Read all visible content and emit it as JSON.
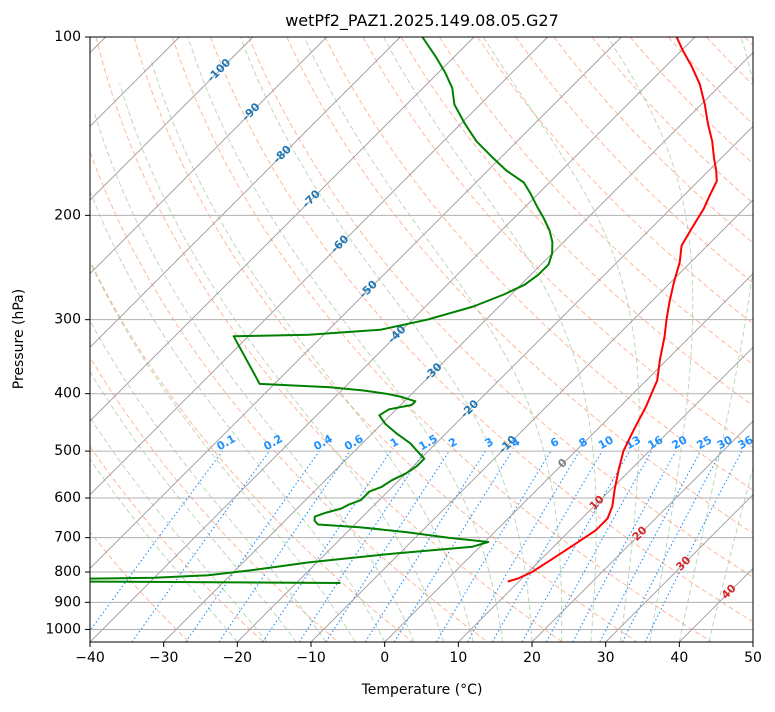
{
  "chart_data": {
    "type": "skew-t",
    "title": "wetPf2_PAZ1.2025.149.08.05.G27",
    "xlabel": "Temperature (°C)",
    "ylabel": "Pressure (hPa)",
    "xlim": [
      -40,
      50
    ],
    "ylim": [
      1050,
      100
    ],
    "y_scale": "log",
    "x_ticks": [
      -40,
      -30,
      -20,
      -10,
      0,
      10,
      20,
      30,
      40,
      50
    ],
    "x_tick_labels": [
      "−40",
      "−30",
      "−20",
      "−10",
      "0",
      "10",
      "20",
      "30",
      "40",
      "50"
    ],
    "y_ticks": [
      100,
      200,
      300,
      400,
      500,
      600,
      700,
      800,
      900,
      1000
    ],
    "y_tick_labels": [
      "100",
      "200",
      "300",
      "400",
      "500",
      "600",
      "700",
      "800",
      "900",
      "1000"
    ],
    "grid": true,
    "colors": {
      "temperature": "#ff0000",
      "dewpoint": "#008000",
      "isotherm": "#999999",
      "dry_adiabat": "#ffa07a",
      "moist_adiabat": "#8fbc8f",
      "mixing_ratio": "#1e90ff",
      "isotherm_label": "#1f77b4",
      "zero_isotherm_label": "#808080",
      "warm_isotherm_label": "#d62728"
    },
    "isotherm_labels": [
      {
        "T": -100,
        "text": "-100"
      },
      {
        "T": -90,
        "text": "-90"
      },
      {
        "T": -80,
        "text": "-80"
      },
      {
        "T": -70,
        "text": "-70"
      },
      {
        "T": -60,
        "text": "-60"
      },
      {
        "T": -50,
        "text": "-50"
      },
      {
        "T": -40,
        "text": "-40"
      },
      {
        "T": -30,
        "text": "-30"
      },
      {
        "T": -20,
        "text": "-20"
      },
      {
        "T": -10,
        "text": "-10"
      },
      {
        "T": 0,
        "text": "0"
      },
      {
        "T": 10,
        "text": "10"
      },
      {
        "T": 20,
        "text": "20"
      },
      {
        "T": 30,
        "text": "30"
      },
      {
        "T": 40,
        "text": "40"
      }
    ],
    "mixing_ratio_labels": [
      "0.1",
      "0.2",
      "0.4",
      "0.6",
      "1",
      "1.5",
      "2",
      "3",
      "4",
      "6",
      "8",
      "10",
      "13",
      "16",
      "20",
      "25",
      "30",
      "36"
    ],
    "series": [
      {
        "id": "temperature",
        "points": [
          {
            "p": 830,
            "T": 8.5
          },
          {
            "p": 820,
            "T": 9.5
          },
          {
            "p": 800,
            "T": 10.5
          },
          {
            "p": 760,
            "T": 11.5
          },
          {
            "p": 720,
            "T": 12.5
          },
          {
            "p": 680,
            "T": 13.5
          },
          {
            "p": 650,
            "T": 13.5
          },
          {
            "p": 620,
            "T": 12.5
          },
          {
            "p": 580,
            "T": 10.5
          },
          {
            "p": 540,
            "T": 8.5
          },
          {
            "p": 500,
            "T": 6.5
          },
          {
            "p": 460,
            "T": 5.0
          },
          {
            "p": 420,
            "T": 3.5
          },
          {
            "p": 400,
            "T": 2.5
          },
          {
            "p": 380,
            "T": 1.5
          },
          {
            "p": 350,
            "T": -1.0
          },
          {
            "p": 320,
            "T": -3.5
          },
          {
            "p": 300,
            "T": -5.5
          },
          {
            "p": 280,
            "T": -7.5
          },
          {
            "p": 260,
            "T": -9.5
          },
          {
            "p": 240,
            "T": -11.5
          },
          {
            "p": 225,
            "T": -13.5
          },
          {
            "p": 210,
            "T": -14.5
          },
          {
            "p": 195,
            "T": -15.5
          },
          {
            "p": 185,
            "T": -16.5
          },
          {
            "p": 175,
            "T": -17.5
          },
          {
            "p": 168,
            "T": -19.0
          },
          {
            "p": 160,
            "T": -21.0
          },
          {
            "p": 150,
            "T": -23.5
          },
          {
            "p": 140,
            "T": -26.5
          },
          {
            "p": 130,
            "T": -29.5
          },
          {
            "p": 120,
            "T": -33.0
          },
          {
            "p": 112,
            "T": -36.5
          },
          {
            "p": 105,
            "T": -40.0
          },
          {
            "p": 100,
            "T": -42.5
          }
        ]
      },
      {
        "id": "dewpoint",
        "points": [
          {
            "p": 835,
            "T": -14.0
          },
          {
            "p": 833,
            "T": -28.0
          },
          {
            "p": 830,
            "T": -50.0
          },
          {
            "p": 826,
            "T": -62.0
          },
          {
            "p": 822,
            "T": -52.0
          },
          {
            "p": 818,
            "T": -40.0
          },
          {
            "p": 810,
            "T": -33.0
          },
          {
            "p": 795,
            "T": -28.0
          },
          {
            "p": 770,
            "T": -21.0
          },
          {
            "p": 745,
            "T": -11.0
          },
          {
            "p": 725,
            "T": -1.0
          },
          {
            "p": 712,
            "T": 0.5
          },
          {
            "p": 700,
            "T": -5.5
          },
          {
            "p": 685,
            "T": -12.0
          },
          {
            "p": 672,
            "T": -19.0
          },
          {
            "p": 665,
            "T": -25.0
          },
          {
            "p": 655,
            "T": -26.0
          },
          {
            "p": 645,
            "T": -26.5
          },
          {
            "p": 635,
            "T": -25.5
          },
          {
            "p": 625,
            "T": -24.0
          },
          {
            "p": 615,
            "T": -23.5
          },
          {
            "p": 605,
            "T": -22.5
          },
          {
            "p": 595,
            "T": -22.5
          },
          {
            "p": 585,
            "T": -22.5
          },
          {
            "p": 575,
            "T": -21.5
          },
          {
            "p": 560,
            "T": -21.0
          },
          {
            "p": 545,
            "T": -20.0
          },
          {
            "p": 530,
            "T": -19.5
          },
          {
            "p": 515,
            "T": -19.5
          },
          {
            "p": 500,
            "T": -21.5
          },
          {
            "p": 485,
            "T": -23.5
          },
          {
            "p": 468,
            "T": -26.5
          },
          {
            "p": 450,
            "T": -29.5
          },
          {
            "p": 435,
            "T": -31.5
          },
          {
            "p": 425,
            "T": -31.0
          },
          {
            "p": 418,
            "T": -28.5
          },
          {
            "p": 412,
            "T": -28.5
          },
          {
            "p": 405,
            "T": -31.0
          },
          {
            "p": 400,
            "T": -33.5
          },
          {
            "p": 395,
            "T": -37.0
          },
          {
            "p": 390,
            "T": -42.0
          },
          {
            "p": 385,
            "T": -52.0
          },
          {
            "p": 320,
            "T": -62.0
          },
          {
            "p": 318,
            "T": -52.0
          },
          {
            "p": 312,
            "T": -43.0
          },
          {
            "p": 300,
            "T": -38.0
          },
          {
            "p": 285,
            "T": -33.5
          },
          {
            "p": 272,
            "T": -31.0
          },
          {
            "p": 262,
            "T": -29.5
          },
          {
            "p": 252,
            "T": -29.0
          },
          {
            "p": 242,
            "T": -29.0
          },
          {
            "p": 232,
            "T": -30.0
          },
          {
            "p": 222,
            "T": -31.5
          },
          {
            "p": 212,
            "T": -33.5
          },
          {
            "p": 202,
            "T": -36.0
          },
          {
            "p": 193,
            "T": -38.5
          },
          {
            "p": 184,
            "T": -41.0
          },
          {
            "p": 176,
            "T": -43.5
          },
          {
            "p": 168,
            "T": -47.5
          },
          {
            "p": 160,
            "T": -51.0
          },
          {
            "p": 150,
            "T": -55.5
          },
          {
            "p": 140,
            "T": -59.5
          },
          {
            "p": 130,
            "T": -63.5
          },
          {
            "p": 122,
            "T": -66.0
          },
          {
            "p": 115,
            "T": -69.0
          },
          {
            "p": 108,
            "T": -72.5
          },
          {
            "p": 100,
            "T": -77.0
          }
        ]
      }
    ]
  }
}
